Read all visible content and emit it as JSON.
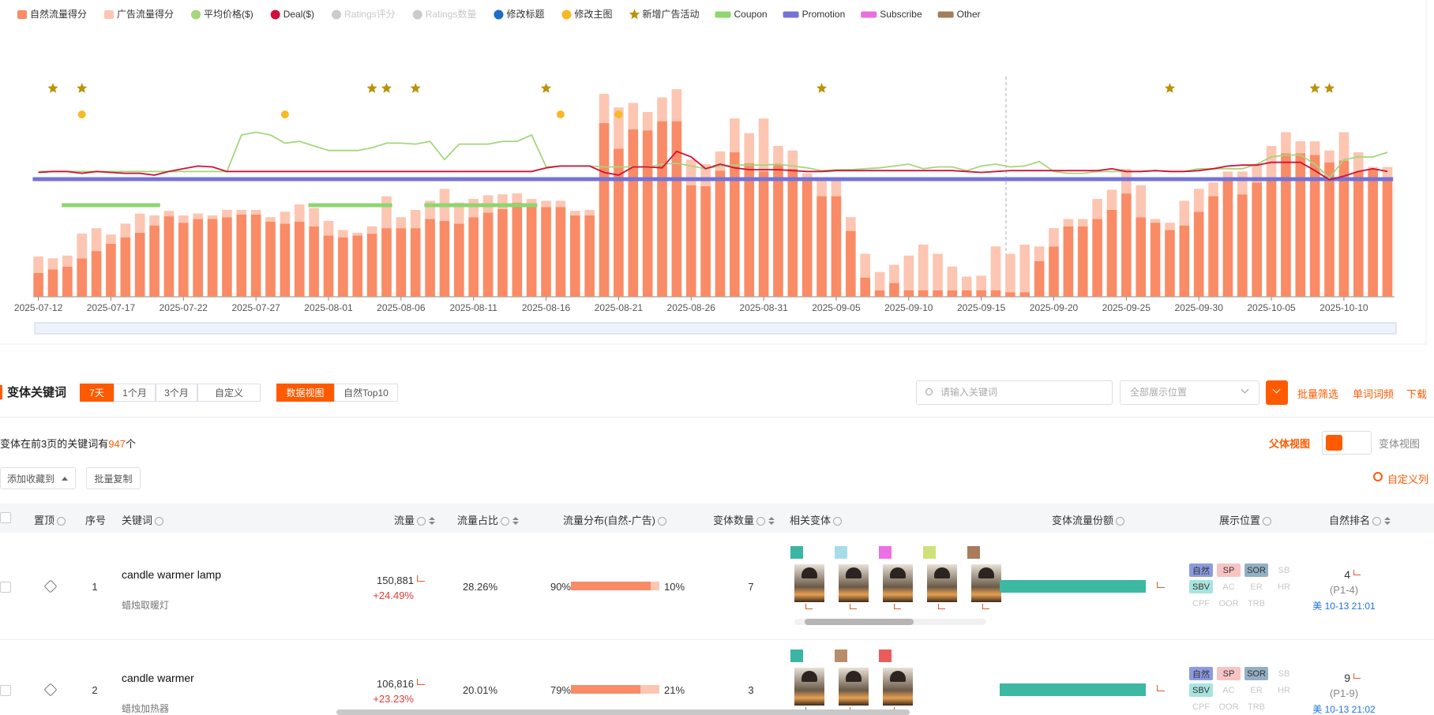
{
  "chart_data": {
    "type": "bar",
    "x": [
      "2025-07-12",
      "2025-07-13",
      "2025-07-14",
      "2025-07-15",
      "2025-07-16",
      "2025-07-17",
      "2025-07-18",
      "2025-07-19",
      "2025-07-20",
      "2025-07-21",
      "2025-07-22",
      "2025-07-23",
      "2025-07-24",
      "2025-07-25",
      "2025-07-26",
      "2025-07-27",
      "2025-07-28",
      "2025-07-29",
      "2025-07-30",
      "2025-07-31",
      "2025-08-01",
      "2025-08-02",
      "2025-08-03",
      "2025-08-04",
      "2025-08-05",
      "2025-08-06",
      "2025-08-07",
      "2025-08-08",
      "2025-08-09",
      "2025-08-10",
      "2025-08-11",
      "2025-08-12",
      "2025-08-13",
      "2025-08-14",
      "2025-08-15",
      "2025-08-16",
      "2025-08-17",
      "2025-08-18",
      "2025-08-19",
      "2025-08-20",
      "2025-08-21",
      "2025-08-22",
      "2025-08-23",
      "2025-08-24",
      "2025-08-25",
      "2025-08-26",
      "2025-08-27",
      "2025-08-28",
      "2025-08-29",
      "2025-08-30",
      "2025-08-31",
      "2025-09-01",
      "2025-09-02",
      "2025-09-03",
      "2025-09-04",
      "2025-09-05",
      "2025-09-06",
      "2025-09-07",
      "2025-09-08",
      "2025-09-09",
      "2025-09-10",
      "2025-09-11",
      "2025-09-12",
      "2025-09-13",
      "2025-09-14",
      "2025-09-15",
      "2025-09-16",
      "2025-09-17",
      "2025-09-18",
      "2025-09-19",
      "2025-09-20",
      "2025-09-21",
      "2025-09-22",
      "2025-09-23",
      "2025-09-24",
      "2025-09-25",
      "2025-09-26",
      "2025-09-27",
      "2025-09-28",
      "2025-09-29",
      "2025-09-30",
      "2025-10-01",
      "2025-10-02",
      "2025-10-03",
      "2025-10-04",
      "2025-10-05",
      "2025-10-06",
      "2025-10-07",
      "2025-10-08",
      "2025-10-09",
      "2025-10-10",
      "2025-10-11",
      "2025-10-12",
      "2025-10-13"
    ],
    "xticks": [
      "2025-07-12",
      "2025-07-17",
      "2025-07-22",
      "2025-07-27",
      "2025-08-01",
      "2025-08-06",
      "2025-08-11",
      "2025-08-16",
      "2025-08-21",
      "2025-08-26",
      "2025-08-31",
      "2025-09-05",
      "2025-09-10",
      "2025-09-15",
      "2025-09-20",
      "2025-09-25",
      "2025-09-30",
      "2025-10-05",
      "2025-10-10"
    ],
    "ylim": [
      0,
      240
    ],
    "series": [
      {
        "name": "自然流量得分",
        "color": "#f98b66",
        "kind": "bar",
        "values": [
          26,
          30,
          33,
          42,
          50,
          58,
          65,
          70,
          78,
          88,
          81,
          85,
          85,
          87,
          90,
          90,
          82,
          80,
          82,
          77,
          67,
          65,
          67,
          69,
          75,
          75,
          75,
          85,
          83,
          80,
          87,
          92,
          96,
          103,
          98,
          98,
          98,
          89,
          89,
          190,
          162,
          183,
          182,
          192,
          192,
          122,
          121,
          138,
          158,
          146,
          137,
          145,
          140,
          127,
          110,
          110,
          72,
          21,
          7,
          15,
          7,
          7,
          7,
          7,
          7,
          7,
          7,
          5,
          5,
          39,
          55,
          77,
          77,
          85,
          95,
          113,
          87,
          81,
          73,
          78,
          93,
          110,
          129,
          112,
          125,
          130,
          157,
          157,
          155,
          147,
          149,
          137,
          140,
          130
        ]
      },
      {
        "name": "广告流量得分",
        "color": "#fcc6b2",
        "kind": "bar",
        "values": [
          18,
          12,
          12,
          27,
          25,
          10,
          15,
          21,
          11,
          6,
          8,
          6,
          4,
          8,
          5,
          5,
          5,
          13,
          19,
          20,
          16,
          8,
          3,
          8,
          35,
          12,
          20,
          20,
          35,
          23,
          20,
          19,
          16,
          10,
          9,
          7,
          7,
          5,
          6,
          32,
          45,
          29,
          20,
          26,
          35,
          28,
          24,
          21,
          37,
          33,
          58,
          20,
          20,
          8,
          17,
          17,
          15,
          26,
          20,
          20,
          38,
          50,
          40,
          26,
          15,
          16,
          48,
          42,
          52,
          16,
          20,
          8,
          8,
          22,
          22,
          27,
          35,
          4,
          8,
          27,
          25,
          15,
          8,
          25,
          20,
          35,
          23,
          13,
          15,
          13,
          31,
          21,
          2,
          12
        ]
      },
      {
        "name": "平均价格($)",
        "color": "#a5d67c",
        "kind": "line",
        "values": [
          137,
          137,
          137,
          137,
          137,
          137,
          137,
          137,
          137,
          137,
          137,
          137,
          137,
          137,
          177,
          180,
          177,
          168,
          170,
          165,
          160,
          160,
          160,
          163,
          168,
          168,
          167,
          170,
          150,
          167,
          167,
          167,
          170,
          170,
          177,
          142,
          143,
          143,
          143,
          142,
          142,
          142,
          142,
          145,
          146,
          143,
          140,
          143,
          144,
          144,
          144,
          145,
          143,
          141,
          138,
          139,
          139,
          140,
          141,
          143,
          145,
          140,
          142,
          142,
          138,
          143,
          145,
          142,
          143,
          148,
          137,
          135,
          135,
          137,
          137,
          137,
          137,
          138,
          137,
          137,
          140,
          140,
          140,
          140,
          145,
          153,
          155,
          155,
          145,
          130,
          150,
          153,
          153,
          158
        ]
      },
      {
        "name": "Deal($)",
        "color": "#d0103a",
        "kind": "line",
        "values": [
          136,
          137,
          137,
          135,
          137,
          136,
          135,
          135,
          133,
          137,
          140,
          143,
          142,
          137,
          137,
          137,
          137,
          137,
          137,
          137,
          137,
          137,
          137,
          137,
          137,
          137,
          137,
          137,
          137,
          137,
          137,
          137,
          137,
          137,
          137,
          141,
          143,
          143,
          143,
          136,
          133,
          142,
          142,
          141,
          159,
          153,
          140,
          145,
          141,
          139,
          139,
          139,
          138,
          137,
          137,
          138,
          138,
          138,
          138,
          138,
          138,
          138,
          138,
          138,
          137,
          136,
          137,
          138,
          138,
          138,
          138,
          138,
          138,
          138,
          140,
          137,
          137,
          138,
          137,
          137,
          138,
          140,
          143,
          144,
          144,
          147,
          147,
          147,
          138,
          128,
          132,
          137,
          140,
          137
        ]
      }
    ],
    "overlays": [
      {
        "name": "Ratings评分",
        "color": "#cccccc",
        "kind": "dot",
        "disabled": true
      },
      {
        "name": "Ratings数量",
        "color": "#cccccc",
        "kind": "dot",
        "disabled": true
      },
      {
        "name": "修改标题",
        "color": "#1a6fc4",
        "kind": "dot"
      },
      {
        "name": "修改主图",
        "color": "#f7b924",
        "kind": "dot",
        "dates": [
          "2025-07-15",
          "2025-07-29",
          "2025-08-17",
          "2025-08-21"
        ]
      },
      {
        "name": "新增广告活动",
        "color": "#b8930c",
        "kind": "star",
        "dates": [
          "2025-07-13",
          "2025-07-15",
          "2025-08-04",
          "2025-08-05",
          "2025-08-07",
          "2025-08-16",
          "2025-09-04",
          "2025-09-28",
          "2025-10-08",
          "2025-10-09"
        ]
      },
      {
        "name": "Coupon",
        "color": "#8ed66f",
        "kind": "range",
        "ranges": [
          [
            "2025-07-14",
            "2025-07-20"
          ],
          [
            "2025-07-31",
            "2025-08-05"
          ],
          [
            "2025-08-08",
            "2025-08-15"
          ]
        ]
      },
      {
        "name": "Promotion",
        "color": "#7373d8",
        "kind": "range",
        "ranges": [
          [
            "2025-07-12",
            "2025-10-13"
          ]
        ]
      },
      {
        "name": "Subscribe",
        "color": "#ea6ee0",
        "kind": "range"
      },
      {
        "name": "Other",
        "color": "#a67c5b",
        "kind": "range"
      }
    ]
  },
  "toolbar": {
    "title": "变体关键词",
    "ranges": [
      "7天",
      "1个月",
      "3个月",
      "自定义"
    ],
    "views": [
      "数据视图",
      "自然Top10"
    ],
    "search_placeholder": "请输入关键词",
    "position_select": "全部展示位置",
    "actions": [
      "批量筛选",
      "单词词频",
      "下载"
    ]
  },
  "summary": {
    "prefix": "变体在前3页的关键词有",
    "count": 947,
    "suffix": "个",
    "parent_view": "父体视图",
    "variant_view": "变体视图"
  },
  "buttons": [
    "添加收藏到",
    "批量复制"
  ],
  "custom_columns": "自定义列",
  "table": {
    "columns": [
      "置顶",
      "序号",
      "关键词",
      "流量",
      "流量占比",
      "流量分布(自然-广告)",
      "变体数量",
      "相关变体",
      "变体流量份额",
      "展示位置",
      "自然排名"
    ],
    "rows": [
      {
        "index": 1,
        "keyword": "candle warmer lamp",
        "keyword_cn": "蜡烛取暖灯",
        "traffic": "150,881",
        "change": "+24.49%",
        "share": "28.26%",
        "split": {
          "values": [
            90,
            10
          ],
          "value_labels": [
            "90%",
            "10%"
          ]
        },
        "variants": 7,
        "variant_colors": [
          "#3bb5a4",
          "#a9dcea",
          "#ee6fe6",
          "#cfe27a",
          "#a97c5b"
        ],
        "placements": [
          {
            "name": "自然",
            "bg": "#8b9be0"
          },
          {
            "name": "SP",
            "bg": "#f7c4c4"
          },
          {
            "name": "SOR",
            "bg": "#93afc4"
          },
          {
            "name": "SB"
          },
          {
            "name": "SBV",
            "bg": "#a8e4df"
          },
          {
            "name": "AC"
          },
          {
            "name": "ER"
          },
          {
            "name": "HR"
          },
          {
            "name": "CPF"
          },
          {
            "name": "OOR"
          },
          {
            "name": "TRB"
          }
        ],
        "rank": 4,
        "rank_pages": "(P1-4)",
        "rank_time": "美 10-13 21:01"
      },
      {
        "index": 2,
        "keyword": "candle warmer",
        "keyword_cn": "蜡烛加热器",
        "traffic": "106,816",
        "change": "+23.23%",
        "share": "20.01%",
        "split": {
          "values": [
            79,
            21
          ],
          "value_labels": [
            "79%",
            "21%"
          ]
        },
        "variants": 3,
        "variant_colors": [
          "#3bb5a4",
          "#b98d6a",
          "#ec5a5a"
        ],
        "placements": [
          {
            "name": "自然",
            "bg": "#8b9be0"
          },
          {
            "name": "SP",
            "bg": "#f7c4c4"
          },
          {
            "name": "SOR",
            "bg": "#93afc4"
          },
          {
            "name": "SB"
          },
          {
            "name": "SBV",
            "bg": "#a8e4df"
          },
          {
            "name": "AC"
          },
          {
            "name": "ER"
          },
          {
            "name": "HR"
          },
          {
            "name": "CPF"
          },
          {
            "name": "OOR"
          },
          {
            "name": "TRB"
          }
        ],
        "rank": 9,
        "rank_pages": "(P1-9)",
        "rank_time": "美 10-13 21:02"
      }
    ]
  }
}
